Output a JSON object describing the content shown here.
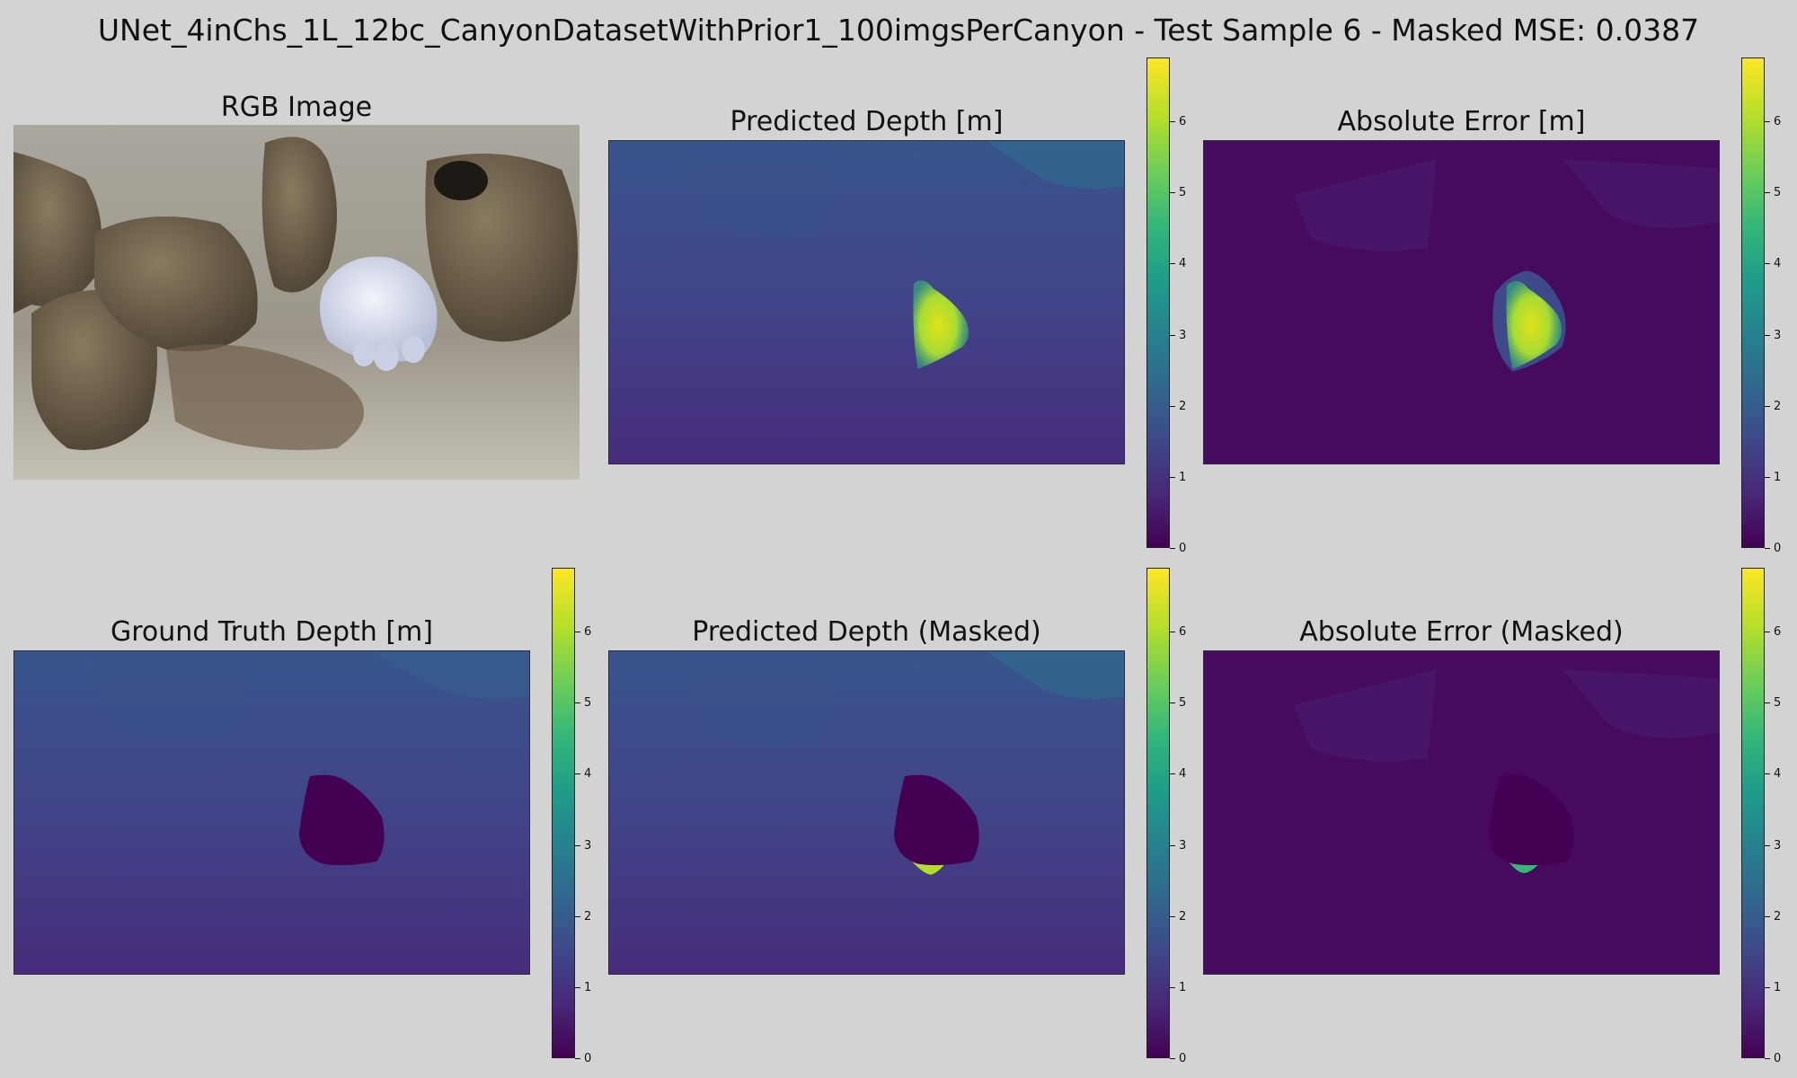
{
  "suptitle": "UNet_4inChs_1L_12bc_CanyonDatasetWithPrior1_100imgsPerCanyon - Test Sample 6 - Masked MSE: 0.0387",
  "colormap": "viridis",
  "chart_data": [
    {
      "type": "image",
      "title": "RGB Image"
    },
    {
      "type": "heatmap",
      "title": "Predicted Depth [m]",
      "colorbar": {
        "min": 0,
        "max": 6.9,
        "ticks": [
          0,
          1,
          2,
          3,
          4,
          5,
          6
        ]
      }
    },
    {
      "type": "heatmap",
      "title": "Absolute Error [m]",
      "colorbar": {
        "min": 0,
        "max": 6.9,
        "ticks": [
          0,
          1,
          2,
          3,
          4,
          5,
          6
        ]
      }
    },
    {
      "type": "heatmap",
      "title": "Ground Truth Depth [m]",
      "colorbar": {
        "min": 0,
        "max": 6.9,
        "ticks": [
          0,
          1,
          2,
          3,
          4,
          5,
          6
        ]
      }
    },
    {
      "type": "heatmap",
      "title": "Predicted Depth (Masked)",
      "colorbar": {
        "min": 0,
        "max": 6.9,
        "ticks": [
          0,
          1,
          2,
          3,
          4,
          5,
          6
        ]
      }
    },
    {
      "type": "heatmap",
      "title": "Absolute Error (Masked)",
      "colorbar": {
        "min": 0,
        "max": 6.9,
        "ticks": [
          0,
          1,
          2,
          3,
          4,
          5,
          6
        ]
      }
    }
  ]
}
